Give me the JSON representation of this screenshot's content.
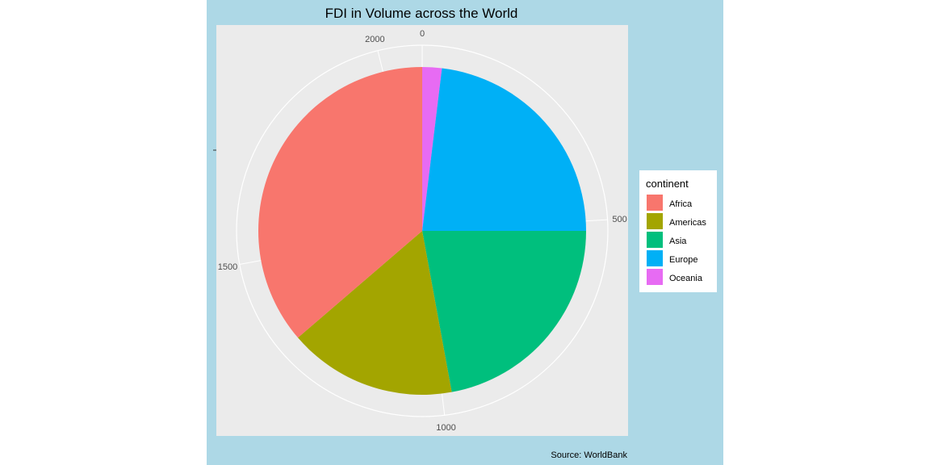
{
  "chart_data": {
    "type": "pie",
    "title": "FDI in Volume across the World",
    "caption": "Source: WorldBank",
    "legend": {
      "title": "continent",
      "placement": "right"
    },
    "theta_ticks": [
      "0",
      "500",
      "1000",
      "1500",
      "2000"
    ],
    "theta_tick_values": [
      0,
      500,
      1000,
      1500,
      2000
    ],
    "total": 2080,
    "slices": [
      {
        "label": "Oceania",
        "value": 40,
        "color": "#E76BF3"
      },
      {
        "label": "Europe",
        "value": 480,
        "color": "#00B0F6"
      },
      {
        "label": "Asia",
        "value": 460,
        "color": "#00BF7D"
      },
      {
        "label": "Americas",
        "value": 345,
        "color": "#A3A500"
      },
      {
        "label": "Africa",
        "value": 755,
        "color": "#F8766D"
      }
    ],
    "legend_order": [
      "Africa",
      "Americas",
      "Asia",
      "Europe",
      "Oceania"
    ],
    "colors": {
      "outer_background": "#ADD8E6",
      "panel_background": "#EBEBEB",
      "grid": "#FFFFFF"
    }
  }
}
